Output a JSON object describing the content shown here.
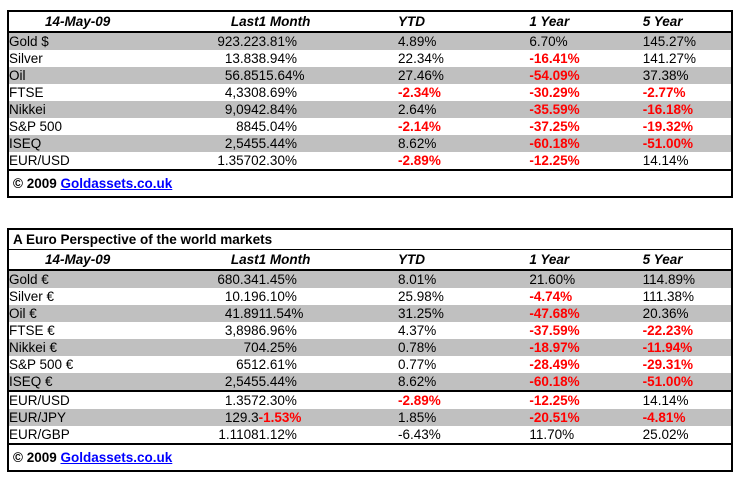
{
  "colors": {
    "row_shade": "#C0C0C0",
    "negative_text": "#FF0000",
    "link_blue": "#0000FF",
    "border": "#000000",
    "background": "#FFFFFF"
  },
  "usd_table": {
    "headers": [
      "14-May-09",
      "Last",
      "1 Month",
      "YTD",
      "1 Year",
      "5 Year"
    ],
    "rows": [
      {
        "cells": [
          "Gold $",
          "923.22",
          "3.81%",
          "4.89%",
          "6.70%",
          "145.27%"
        ],
        "red": []
      },
      {
        "cells": [
          "Silver",
          "13.83",
          "8.94%",
          "22.34%",
          "-16.41%",
          "141.27%"
        ],
        "red": [
          4
        ]
      },
      {
        "cells": [
          "Oil",
          "56.85",
          "15.64%",
          "27.46%",
          "-54.09%",
          "37.38%"
        ],
        "red": [
          4
        ]
      },
      {
        "cells": [
          "FTSE",
          "4,330",
          "8.69%",
          "-2.34%",
          "-30.29%",
          "-2.77%"
        ],
        "red": [
          3,
          4,
          5
        ]
      },
      {
        "cells": [
          "Nikkei",
          "9,094",
          "2.84%",
          "2.64%",
          "-35.59%",
          "-16.18%"
        ],
        "red": [
          4,
          5
        ]
      },
      {
        "cells": [
          "S&P 500",
          "884",
          "5.04%",
          "-2.14%",
          "-37.25%",
          "-19.32%"
        ],
        "red": [
          3,
          4,
          5
        ]
      },
      {
        "cells": [
          "ISEQ",
          "2,545",
          "5.44%",
          "8.62%",
          "-60.18%",
          "-51.00%"
        ],
        "red": [
          4,
          5
        ]
      },
      {
        "cells": [
          "EUR/USD",
          "1.3570",
          "2.30%",
          "-2.89%",
          "-12.25%",
          "14.14%"
        ],
        "red": [
          3,
          4
        ]
      }
    ],
    "footer": {
      "copyright": "© 2009",
      "link_text": "Goldassets.co.uk"
    }
  },
  "euro_table": {
    "title": "A Euro Perspective of the world markets",
    "headers": [
      "14-May-09",
      "Last",
      "1 Month",
      "YTD",
      "1 Year",
      "5 Year"
    ],
    "rows": [
      {
        "cells": [
          "Gold €",
          "680.34",
          "1.45%",
          "8.01%",
          "21.60%",
          "114.89%"
        ],
        "red": []
      },
      {
        "cells": [
          "Silver €",
          "10.19",
          "6.10%",
          "25.98%",
          "-4.74%",
          "111.38%"
        ],
        "red": [
          4
        ]
      },
      {
        "cells": [
          "Oil €",
          "41.89",
          "11.54%",
          "31.25%",
          "-47.68%",
          "20.36%"
        ],
        "red": [
          4
        ]
      },
      {
        "cells": [
          "FTSE €",
          "3,898",
          "6.96%",
          "4.37%",
          "-37.59%",
          "-22.23%"
        ],
        "red": [
          4,
          5
        ]
      },
      {
        "cells": [
          "Nikkei €",
          "70",
          "4.25%",
          "0.78%",
          "-18.97%",
          "-11.94%"
        ],
        "red": [
          4,
          5
        ]
      },
      {
        "cells": [
          "S&P 500 €",
          "651",
          "2.61%",
          "0.77%",
          "-28.49%",
          "-29.31%"
        ],
        "red": [
          4,
          5
        ]
      },
      {
        "cells": [
          "ISEQ €",
          "2,545",
          "5.44%",
          "8.62%",
          "-60.18%",
          "-51.00%"
        ],
        "red": [
          4,
          5
        ]
      },
      {
        "cells": [
          "EUR/USD",
          "1.357",
          "2.30%",
          "-2.89%",
          "-12.25%",
          "14.14%"
        ],
        "red": [
          3,
          4
        ],
        "separator_above": true
      },
      {
        "cells": [
          "EUR/JPY",
          "129.3",
          "-1.53%",
          "1.85%",
          "-20.51%",
          "-4.81%"
        ],
        "red": [
          2,
          4,
          5
        ]
      },
      {
        "cells": [
          "EUR/GBP",
          "1.1108",
          "1.12%",
          "-6.43%",
          "11.70%",
          "25.02%"
        ],
        "red": []
      }
    ],
    "footer": {
      "copyright": "© 2009",
      "link_text": "Goldassets.co.uk"
    }
  }
}
